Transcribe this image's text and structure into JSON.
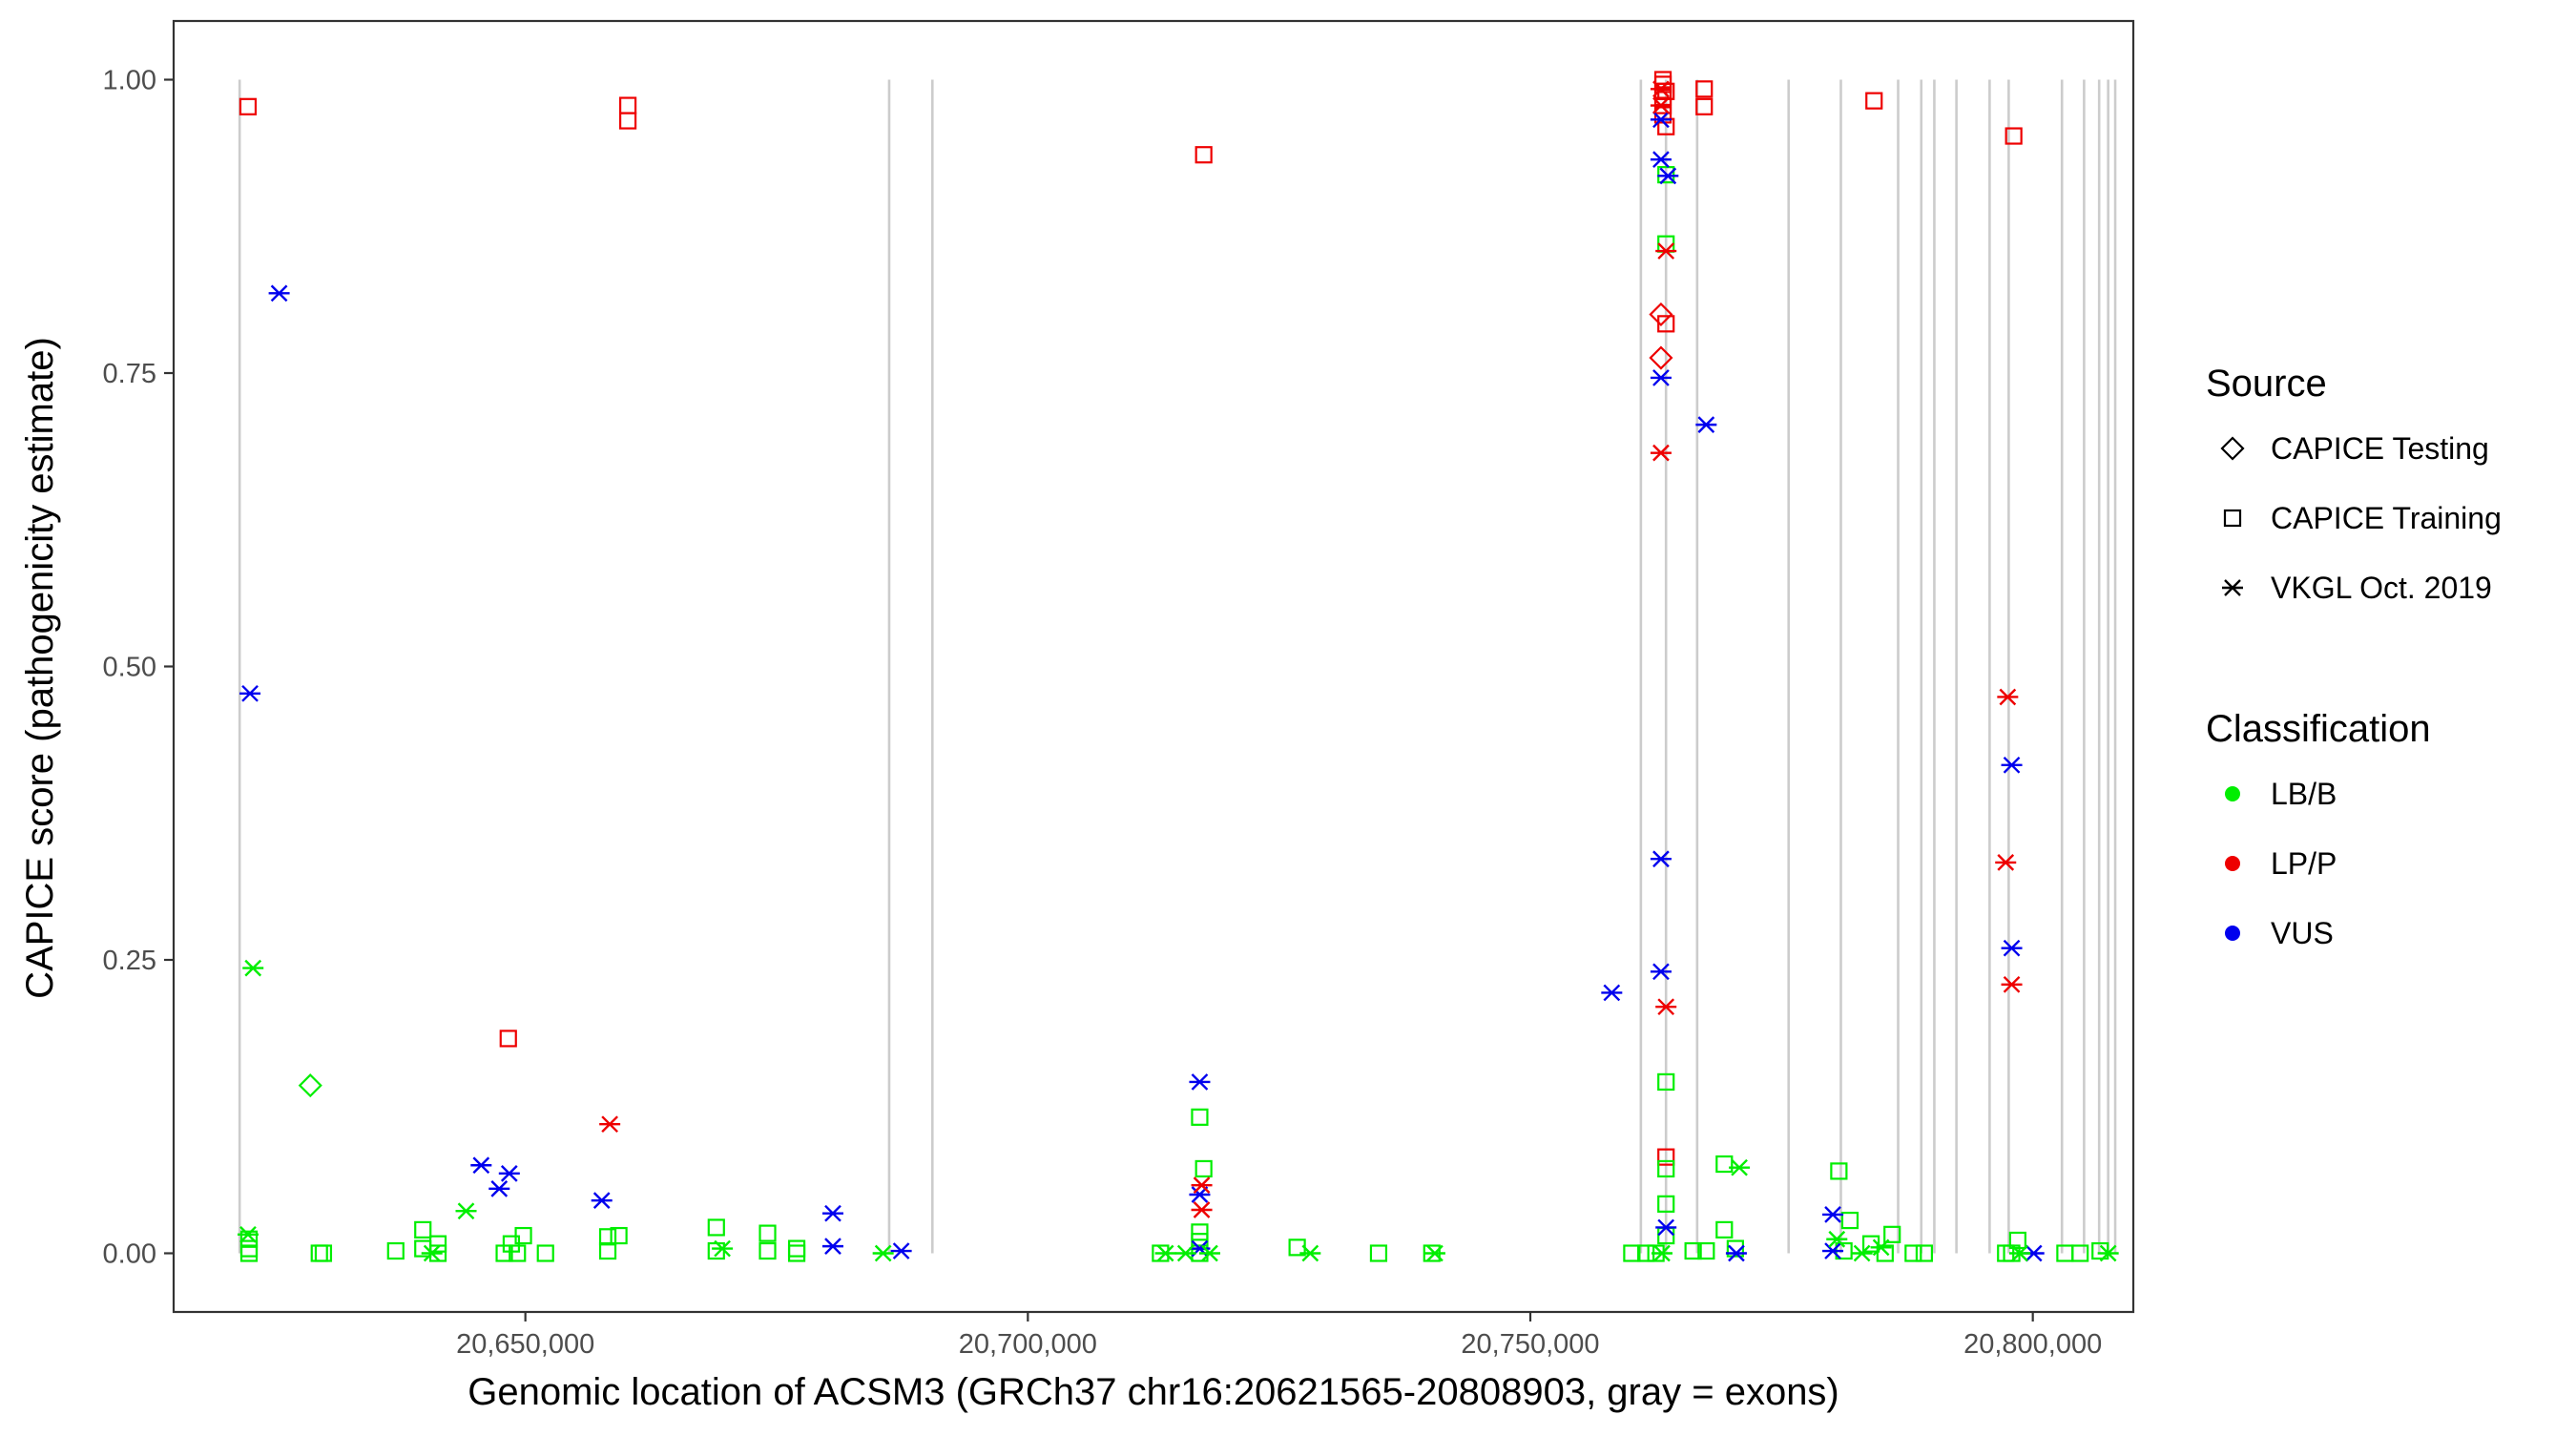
{
  "chart_data": {
    "type": "scatter",
    "xlabel": "Genomic location of ACSM3 (GRCh37 chr16:20621565-20808903, gray = exons)",
    "ylabel": "CAPICE score (pathogenicity estimate)",
    "xlim": [
      20615000,
      20810000
    ],
    "ylim": [
      -0.05,
      1.05
    ],
    "x_ticks": [
      20650000,
      20700000,
      20750000,
      20800000
    ],
    "x_tick_labels": [
      "20,650,000",
      "20,700,000",
      "20,750,000",
      "20,800,000"
    ],
    "y_ticks": [
      0,
      0.25,
      0.5,
      0.75,
      1.0
    ],
    "y_tick_labels": [
      "0.00",
      "0.25",
      "0.50",
      "0.75",
      "1.00"
    ],
    "grid": false,
    "exon_line_color": "#cccccc",
    "exons": [
      20621565,
      20686200,
      20690500,
      20761000,
      20763500,
      20766600,
      20775700,
      20780900,
      20786600,
      20788900,
      20790200,
      20792400,
      20795700,
      20797600,
      20802900,
      20805100,
      20806600,
      20807500,
      20808200
    ],
    "legend": {
      "position": "right",
      "source": {
        "title": "Source",
        "items": [
          {
            "label": "CAPICE Testing",
            "shape": "diamond"
          },
          {
            "label": "CAPICE Training",
            "shape": "square"
          },
          {
            "label": "VKGL Oct. 2019",
            "shape": "asterisk"
          }
        ]
      },
      "classification": {
        "title": "Classification",
        "items": [
          {
            "label": "LB/B",
            "color": "#00ee00"
          },
          {
            "label": "LP/P",
            "color": "#ee0000"
          },
          {
            "label": "VUS",
            "color": "#0000ee"
          }
        ]
      }
    },
    "series": [
      {
        "source": "CAPICE Training",
        "classification": "LP/P",
        "points": [
          [
            20622400,
            0.977
          ],
          [
            20660200,
            0.978
          ],
          [
            20660200,
            0.965
          ],
          [
            20648300,
            0.183
          ],
          [
            20717500,
            0.936
          ],
          [
            20763200,
            1.0
          ],
          [
            20763200,
            0.996
          ],
          [
            20763200,
            0.99
          ],
          [
            20763200,
            0.985
          ],
          [
            20763200,
            0.978
          ],
          [
            20763200,
            0.97
          ],
          [
            20763500,
            0.99
          ],
          [
            20763500,
            0.96
          ],
          [
            20767300,
            0.992
          ],
          [
            20767300,
            0.977
          ],
          [
            20784200,
            0.982
          ],
          [
            20798100,
            0.952
          ],
          [
            20763500,
            0.792
          ],
          [
            20763500,
            0.082
          ]
        ]
      },
      {
        "source": "CAPICE Training",
        "classification": "LB/B",
        "points": [
          [
            20622500,
            0.012
          ],
          [
            20622500,
            0.004
          ],
          [
            20622500,
            0.0
          ],
          [
            20629500,
            0.0
          ],
          [
            20629900,
            0.0
          ],
          [
            20637100,
            0.002
          ],
          [
            20639800,
            0.02
          ],
          [
            20639800,
            0.004
          ],
          [
            20641300,
            0.008
          ],
          [
            20641300,
            0.0
          ],
          [
            20647900,
            0.0
          ],
          [
            20648600,
            0.008
          ],
          [
            20649200,
            0.0
          ],
          [
            20649800,
            0.015
          ],
          [
            20652000,
            0.0
          ],
          [
            20658200,
            0.014
          ],
          [
            20658200,
            0.002
          ],
          [
            20659300,
            0.015
          ],
          [
            20669000,
            0.022
          ],
          [
            20669000,
            0.002
          ],
          [
            20674100,
            0.017
          ],
          [
            20674100,
            0.002
          ],
          [
            20677000,
            0.004
          ],
          [
            20677000,
            0.0
          ],
          [
            20713200,
            0.0
          ],
          [
            20717100,
            0.116
          ],
          [
            20717500,
            0.072
          ],
          [
            20717100,
            0.018
          ],
          [
            20717100,
            0.01
          ],
          [
            20717100,
            0.0
          ],
          [
            20726800,
            0.005
          ],
          [
            20734900,
            0.0
          ],
          [
            20740200,
            0.0
          ],
          [
            20760100,
            0.0
          ],
          [
            20761500,
            0.0
          ],
          [
            20762500,
            0.0
          ],
          [
            20763500,
            0.919
          ],
          [
            20763500,
            0.86
          ],
          [
            20763500,
            0.146
          ],
          [
            20763500,
            0.072
          ],
          [
            20763500,
            0.042
          ],
          [
            20763500,
            0.015
          ],
          [
            20766200,
            0.002
          ],
          [
            20767500,
            0.002
          ],
          [
            20769300,
            0.076
          ],
          [
            20769300,
            0.02
          ],
          [
            20770400,
            0.004
          ],
          [
            20780700,
            0.07
          ],
          [
            20781800,
            0.028
          ],
          [
            20781200,
            0.002
          ],
          [
            20783900,
            0.008
          ],
          [
            20785300,
            0.0
          ],
          [
            20786000,
            0.016
          ],
          [
            20788100,
            0.0
          ],
          [
            20789200,
            0.0
          ],
          [
            20797300,
            0.0
          ],
          [
            20797900,
            0.0
          ],
          [
            20798500,
            0.011
          ],
          [
            20803200,
            0.0
          ],
          [
            20804700,
            0.0
          ],
          [
            20806700,
            0.002
          ]
        ]
      },
      {
        "source": "CAPICE Testing",
        "classification": "LB/B",
        "points": [
          [
            20628600,
            0.143
          ]
        ]
      },
      {
        "source": "CAPICE Testing",
        "classification": "LP/P",
        "points": [
          [
            20763000,
            0.8
          ],
          [
            20763000,
            0.763
          ]
        ]
      },
      {
        "source": "VKGL Oct. 2019",
        "classification": "VUS",
        "points": [
          [
            20622600,
            0.477
          ],
          [
            20625500,
            0.818
          ],
          [
            20645600,
            0.075
          ],
          [
            20647400,
            0.055
          ],
          [
            20648400,
            0.068
          ],
          [
            20657600,
            0.045
          ],
          [
            20680600,
            0.034
          ],
          [
            20680600,
            0.006
          ],
          [
            20687400,
            0.002
          ],
          [
            20717100,
            0.146
          ],
          [
            20717100,
            0.05
          ],
          [
            20717100,
            0.004
          ],
          [
            20758100,
            0.222
          ],
          [
            20763000,
            0.966
          ],
          [
            20763000,
            0.932
          ],
          [
            20763700,
            0.918
          ],
          [
            20763000,
            0.746
          ],
          [
            20763000,
            0.336
          ],
          [
            20763000,
            0.24
          ],
          [
            20763500,
            0.022
          ],
          [
            20767500,
            0.706
          ],
          [
            20770500,
            0.0
          ],
          [
            20780100,
            0.033
          ],
          [
            20780100,
            0.002
          ],
          [
            20797900,
            0.416
          ],
          [
            20797900,
            0.26
          ],
          [
            20800100,
            0.0
          ]
        ]
      },
      {
        "source": "VKGL Oct. 2019",
        "classification": "LP/P",
        "points": [
          [
            20658400,
            0.11
          ],
          [
            20717300,
            0.058
          ],
          [
            20717300,
            0.037
          ],
          [
            20763000,
            0.992
          ],
          [
            20763000,
            0.978
          ],
          [
            20763500,
            0.854
          ],
          [
            20763000,
            0.682
          ],
          [
            20763500,
            0.21
          ],
          [
            20797500,
            0.474
          ],
          [
            20797300,
            0.333
          ],
          [
            20797900,
            0.229
          ]
        ]
      },
      {
        "source": "VKGL Oct. 2019",
        "classification": "LB/B",
        "points": [
          [
            20622400,
            0.016
          ],
          [
            20622900,
            0.243
          ],
          [
            20644100,
            0.036
          ],
          [
            20640700,
            0.0
          ],
          [
            20669600,
            0.004
          ],
          [
            20685600,
            0.0
          ],
          [
            20713700,
            0.0
          ],
          [
            20715700,
            0.0
          ],
          [
            20718100,
            0.0
          ],
          [
            20728100,
            0.0
          ],
          [
            20740500,
            0.0
          ],
          [
            20763100,
            0.0
          ],
          [
            20770800,
            0.073
          ],
          [
            20780500,
            0.012
          ],
          [
            20783000,
            0.0
          ],
          [
            20784900,
            0.005
          ],
          [
            20798700,
            0.0
          ],
          [
            20807500,
            0.0
          ]
        ]
      }
    ]
  }
}
